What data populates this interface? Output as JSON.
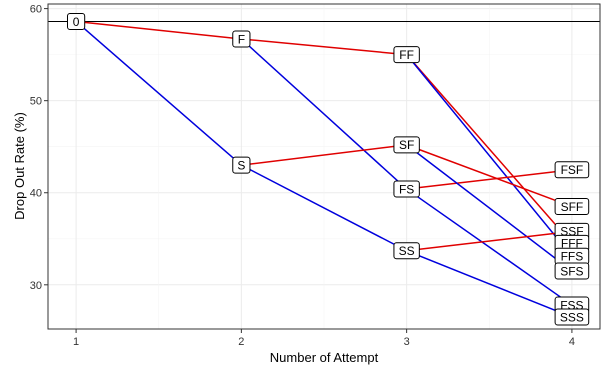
{
  "chart_data": {
    "type": "line",
    "title": "",
    "xlabel": "Number of Attempt",
    "ylabel": "Drop Out Rate (%)",
    "xlim": [
      0.83,
      4.17
    ],
    "ylim": [
      25.2,
      60.5
    ],
    "x_ticks": [
      1,
      2,
      3,
      4
    ],
    "y_ticks": [
      30,
      40,
      50,
      60
    ],
    "grid": true,
    "legend": "none",
    "reference_line": {
      "y": 58.6,
      "color": "#000000"
    },
    "colors": {
      "fail": "#e00000",
      "success": "#0000dd"
    },
    "nodes": [
      {
        "label": "0",
        "x": 1,
        "y": 58.6
      },
      {
        "label": "F",
        "x": 2,
        "y": 56.7
      },
      {
        "label": "S",
        "x": 2,
        "y": 43.0
      },
      {
        "label": "FF",
        "x": 3,
        "y": 55.0
      },
      {
        "label": "SF",
        "x": 3,
        "y": 45.2
      },
      {
        "label": "FS",
        "x": 3,
        "y": 40.4
      },
      {
        "label": "SS",
        "x": 3,
        "y": 33.7
      },
      {
        "label": "FSF",
        "x": 4,
        "y": 42.5
      },
      {
        "label": "SFF",
        "x": 4,
        "y": 38.5
      },
      {
        "label": "SSF",
        "x": 4,
        "y": 35.8
      },
      {
        "label": "FFF",
        "x": 4,
        "y": 34.5
      },
      {
        "label": "FFS",
        "x": 4,
        "y": 33.1
      },
      {
        "label": "SFS",
        "x": 4,
        "y": 31.5
      },
      {
        "label": "FSS",
        "x": 4,
        "y": 27.8
      },
      {
        "label": "SSS",
        "x": 4,
        "y": 26.5
      }
    ],
    "edges": [
      {
        "from": "0",
        "to": "F",
        "outcome": "fail"
      },
      {
        "from": "0",
        "to": "S",
        "outcome": "success"
      },
      {
        "from": "F",
        "to": "FF",
        "outcome": "fail"
      },
      {
        "from": "F",
        "to": "FS",
        "outcome": "success"
      },
      {
        "from": "S",
        "to": "SF",
        "outcome": "fail"
      },
      {
        "from": "S",
        "to": "SS",
        "outcome": "success"
      },
      {
        "from": "FF",
        "to": "FFF",
        "outcome": "fail"
      },
      {
        "from": "FF",
        "to": "FFS",
        "outcome": "success"
      },
      {
        "from": "FS",
        "to": "FSF",
        "outcome": "fail"
      },
      {
        "from": "FS",
        "to": "FSS",
        "outcome": "success"
      },
      {
        "from": "SF",
        "to": "SFF",
        "outcome": "fail"
      },
      {
        "from": "SF",
        "to": "SFS",
        "outcome": "success"
      },
      {
        "from": "SS",
        "to": "SSF",
        "outcome": "fail"
      },
      {
        "from": "SS",
        "to": "SSS",
        "outcome": "success"
      }
    ]
  }
}
